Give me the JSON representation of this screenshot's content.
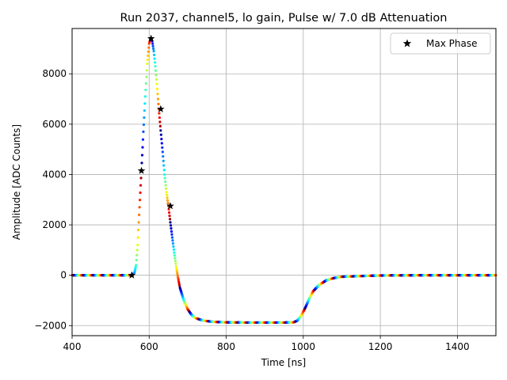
{
  "chart_data": {
    "type": "scatter",
    "title": "Run 2037, channel5, lo gain, Pulse w/ 7.0 dB Attenuation",
    "xlabel": "Time [ns]",
    "ylabel": "Amplitude [ADC Counts]",
    "xlim": [
      400,
      1500
    ],
    "ylim": [
      -2400,
      9800
    ],
    "xticks": [
      400,
      600,
      800,
      1000,
      1200,
      1400
    ],
    "yticks": [
      -2000,
      0,
      2000,
      4000,
      6000,
      8000
    ],
    "xtick_labels": [
      "400",
      "600",
      "800",
      "1000",
      "1200",
      "1400"
    ],
    "ytick_labels": [
      "−2000",
      "0",
      "2000",
      "4000",
      "6000",
      "8000"
    ],
    "grid": true,
    "legend": {
      "placement": "top-right",
      "entries": [
        "Max Phase"
      ]
    },
    "colormap": "jet",
    "series": [
      {
        "kind": "waveform",
        "x": [
          400,
          500,
          550,
          556,
          562,
          566,
          570,
          575,
          580,
          585,
          590,
          595,
          600,
          604,
          608,
          612,
          616,
          620,
          625,
          630,
          635,
          640,
          645,
          650,
          655,
          660,
          665,
          670,
          675,
          680,
          690,
          700,
          710,
          720,
          740,
          760,
          780,
          800,
          850,
          900,
          950,
          975,
          985,
          995,
          1005,
          1015,
          1025,
          1040,
          1060,
          1080,
          1100,
          1150,
          1200,
          1300,
          1400,
          1500
        ],
        "values": [
          0,
          0,
          0,
          0,
          100,
          400,
          1200,
          2700,
          4150,
          5700,
          7100,
          8400,
          9200,
          9400,
          9300,
          8900,
          8300,
          7600,
          6600,
          5750,
          4900,
          4000,
          3300,
          2750,
          2100,
          1500,
          900,
          350,
          -100,
          -500,
          -1000,
          -1350,
          -1570,
          -1700,
          -1800,
          -1840,
          -1860,
          -1870,
          -1880,
          -1880,
          -1880,
          -1870,
          -1800,
          -1600,
          -1300,
          -950,
          -650,
          -400,
          -200,
          -110,
          -60,
          -30,
          -10,
          0,
          0,
          0
        ]
      },
      {
        "name": "Max Phase",
        "marker": "star",
        "x": [
          555,
          580,
          605,
          630,
          655
        ],
        "values": [
          0,
          4150,
          9400,
          6600,
          2750
        ]
      }
    ]
  }
}
